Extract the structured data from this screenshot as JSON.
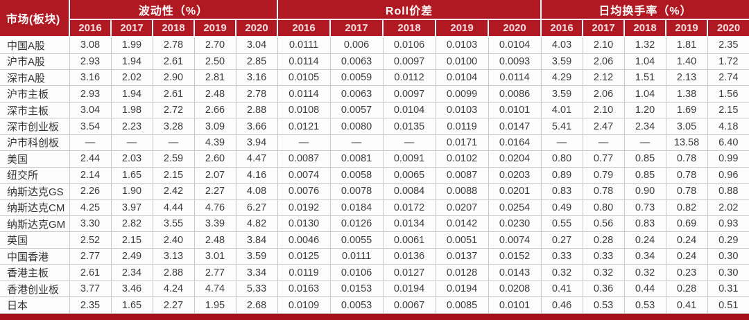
{
  "colors": {
    "header_red": "#B01822",
    "bottom_bar_red": "#A5101B",
    "grid_gray": "#c9c9c9",
    "header_text": "#ffffff",
    "year_text": "#F6E0E0",
    "body_text": "#3b3b3b"
  },
  "table": {
    "corner_label": "市场(板块)",
    "groups": [
      {
        "label": "波动性（%）",
        "years": [
          "2016",
          "2017",
          "2018",
          "2019",
          "2020"
        ]
      },
      {
        "label": "Roll价差",
        "years": [
          "2016",
          "2017",
          "2018",
          "2019",
          "2020"
        ]
      },
      {
        "label": "日均换手率（%）",
        "years": [
          "2016",
          "2017",
          "2018",
          "2019",
          "2020"
        ]
      }
    ],
    "rows": [
      {
        "label": "中国A股",
        "volatility": [
          "3.08",
          "1.99",
          "2.78",
          "2.70",
          "3.04"
        ],
        "roll_spread": [
          "0.0111",
          "0.006",
          "0.0106",
          "0.0103",
          "0.0104"
        ],
        "turnover": [
          "4.03",
          "2.10",
          "1.32",
          "1.81",
          "2.35"
        ]
      },
      {
        "label": "沪市A股",
        "volatility": [
          "2.93",
          "1.94",
          "2.61",
          "2.50",
          "2.85"
        ],
        "roll_spread": [
          "0.0114",
          "0.0063",
          "0.0097",
          "0.0100",
          "0.0093"
        ],
        "turnover": [
          "3.59",
          "2.06",
          "1.04",
          "1.40",
          "1.72"
        ]
      },
      {
        "label": "深市A股",
        "volatility": [
          "3.16",
          "2.02",
          "2.90",
          "2.81",
          "3.16"
        ],
        "roll_spread": [
          "0.0105",
          "0.0059",
          "0.0112",
          "0.0104",
          "0.0114"
        ],
        "turnover": [
          "4.29",
          "2.12",
          "1.51",
          "2.13",
          "2.74"
        ]
      },
      {
        "label": "沪市主板",
        "volatility": [
          "2.93",
          "1.94",
          "2.61",
          "2.48",
          "2.78"
        ],
        "roll_spread": [
          "0.0114",
          "0.0063",
          "0.0097",
          "0.0099",
          "0.0086"
        ],
        "turnover": [
          "3.59",
          "2.06",
          "1.04",
          "1.38",
          "1.56"
        ]
      },
      {
        "label": "深市主板",
        "volatility": [
          "3.04",
          "1.98",
          "2.72",
          "2.66",
          "2.88"
        ],
        "roll_spread": [
          "0.0108",
          "0.0057",
          "0.0104",
          "0.0103",
          "0.0101"
        ],
        "turnover": [
          "4.01",
          "2.10",
          "1.20",
          "1.69",
          "2.15"
        ]
      },
      {
        "label": "深市创业板",
        "volatility": [
          "3.54",
          "2.23",
          "3.28",
          "3.09",
          "3.66"
        ],
        "roll_spread": [
          "0.0121",
          "0.0080",
          "0.0135",
          "0.0119",
          "0.0147"
        ],
        "turnover": [
          "5.41",
          "2.47",
          "2.34",
          "3.05",
          "4.18"
        ]
      },
      {
        "label": "沪市科创板",
        "volatility": [
          "—",
          "—",
          "—",
          "4.39",
          "3.94"
        ],
        "roll_spread": [
          "—",
          "—",
          "—",
          "0.0171",
          "0.0164"
        ],
        "turnover": [
          "—",
          "—",
          "—",
          "13.58",
          "6.40"
        ]
      },
      {
        "label": "美国",
        "volatility": [
          "2.44",
          "2.03",
          "2.59",
          "2.60",
          "4.47"
        ],
        "roll_spread": [
          "0.0087",
          "0.0081",
          "0.0091",
          "0.0102",
          "0.0204"
        ],
        "turnover": [
          "0.80",
          "0.77",
          "0.85",
          "0.78",
          "0.99"
        ]
      },
      {
        "label": "纽交所",
        "volatility": [
          "2.14",
          "1.65",
          "2.15",
          "2.07",
          "4.16"
        ],
        "roll_spread": [
          "0.0074",
          "0.0058",
          "0.0065",
          "0.0087",
          "0.0203"
        ],
        "turnover": [
          "0.89",
          "0.79",
          "0.85",
          "0.78",
          "0.96"
        ]
      },
      {
        "label": "纳斯达克GS",
        "volatility": [
          "2.26",
          "1.90",
          "2.42",
          "2.27",
          "4.08"
        ],
        "roll_spread": [
          "0.0076",
          "0.0078",
          "0.0084",
          "0.0088",
          "0.0201"
        ],
        "turnover": [
          "0.83",
          "0.78",
          "0.90",
          "0.78",
          "0.88"
        ]
      },
      {
        "label": "纳斯达克CM",
        "volatility": [
          "4.25",
          "3.97",
          "4.44",
          "4.76",
          "6.27"
        ],
        "roll_spread": [
          "0.0192",
          "0.0184",
          "0.0172",
          "0.0207",
          "0.0254"
        ],
        "turnover": [
          "0.49",
          "0.80",
          "0.73",
          "0.82",
          "2.02"
        ]
      },
      {
        "label": "纳斯达克GM",
        "volatility": [
          "3.30",
          "2.82",
          "3.55",
          "3.39",
          "4.82"
        ],
        "roll_spread": [
          "0.0130",
          "0.0126",
          "0.0134",
          "0.0142",
          "0.0230"
        ],
        "turnover": [
          "0.55",
          "0.56",
          "0.83",
          "0.69",
          "0.93"
        ]
      },
      {
        "label": "英国",
        "volatility": [
          "2.52",
          "2.15",
          "2.40",
          "2.48",
          "3.84"
        ],
        "roll_spread": [
          "0.0046",
          "0.0055",
          "0.0061",
          "0.0051",
          "0.0074"
        ],
        "turnover": [
          "0.27",
          "0.28",
          "0.24",
          "0.24",
          "0.29"
        ]
      },
      {
        "label": "中国香港",
        "volatility": [
          "2.77",
          "2.49",
          "3.13",
          "3.01",
          "3.59"
        ],
        "roll_spread": [
          "0.0125",
          "0.0111",
          "0.0136",
          "0.0137",
          "0.0152"
        ],
        "turnover": [
          "0.33",
          "0.33",
          "0.34",
          "0.24",
          "0.30"
        ]
      },
      {
        "label": "香港主板",
        "volatility": [
          "2.61",
          "2.34",
          "2.88",
          "2.77",
          "3.34"
        ],
        "roll_spread": [
          "0.0119",
          "0.0106",
          "0.0127",
          "0.0128",
          "0.0143"
        ],
        "turnover": [
          "0.32",
          "0.32",
          "0.32",
          "0.23",
          "0.30"
        ]
      },
      {
        "label": "香港创业板",
        "volatility": [
          "3.77",
          "3.46",
          "4.24",
          "4.74",
          "5.33"
        ],
        "roll_spread": [
          "0.0163",
          "0.0153",
          "0.0194",
          "0.0194",
          "0.0208"
        ],
        "turnover": [
          "0.41",
          "0.36",
          "0.44",
          "0.28",
          "0.31"
        ]
      },
      {
        "label": "日本",
        "volatility": [
          "2.35",
          "1.65",
          "2.27",
          "1.95",
          "2.68"
        ],
        "roll_spread": [
          "0.0109",
          "0.0053",
          "0.0067",
          "0.0085",
          "0.0101"
        ],
        "turnover": [
          "0.46",
          "0.53",
          "0.53",
          "0.41",
          "0.51"
        ]
      }
    ]
  }
}
